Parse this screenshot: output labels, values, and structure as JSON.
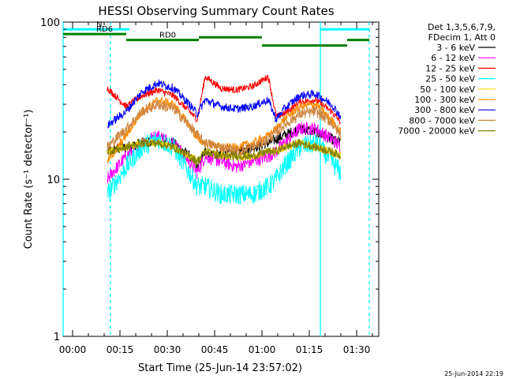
{
  "chart_data": {
    "type": "line",
    "title": "HESSI Observing Summary Count Rates",
    "xlabel": "Start Time (25-Jun-14 23:57:02)",
    "ylabel": "Count Rate (s⁻¹ detector⁻¹)",
    "yscale": "log",
    "ylim": [
      1,
      100
    ],
    "xlim_min": [
      -3,
      97
    ],
    "x_ticks": [
      "00:00",
      "00:15",
      "00:30",
      "00:45",
      "01:00",
      "01:15",
      "01:30"
    ],
    "x_tick_minutes": [
      0,
      15,
      30,
      45,
      60,
      75,
      90
    ],
    "y_tick_labels": [
      "1",
      "10",
      "100"
    ],
    "y_tick_values": [
      1,
      10,
      100
    ],
    "legend_header": [
      "Det 1,3,5,6,7,9,",
      "FDecim 1, Att 0"
    ],
    "legend_placement": "right",
    "footer_timestamp": "25-Jun-2014 22:19",
    "data_range_min": [
      11,
      85
    ],
    "eclipse_gap_min": [
      39.5,
      64.5
    ],
    "series": [
      {
        "name": "3 - 6 keV",
        "color": "#000000",
        "x": [
          11,
          17,
          22,
          27,
          32,
          37,
          39.5,
          42,
          47,
          52,
          57,
          62,
          64.5,
          67,
          72,
          77,
          82,
          85
        ],
        "y": [
          15,
          16,
          17,
          18,
          17,
          14,
          12,
          15,
          14,
          15,
          16,
          17,
          18,
          19,
          21,
          20,
          18,
          17
        ]
      },
      {
        "name": "6 - 12 keV",
        "color": "#ff00ff",
        "x": [
          11,
          17,
          22,
          27,
          32,
          37,
          39.5,
          42,
          47,
          52,
          57,
          62,
          64.5,
          67,
          72,
          77,
          82,
          85
        ],
        "y": [
          10,
          14,
          17,
          19,
          17,
          13,
          11,
          14,
          13,
          12,
          13,
          14,
          15,
          17,
          21,
          21,
          18,
          16
        ]
      },
      {
        "name": "12 - 25 keV",
        "color": "#ff0000",
        "x": [
          11,
          17,
          22,
          27,
          32,
          37,
          39.5,
          42,
          47,
          52,
          57,
          62,
          64.5,
          67,
          72,
          77,
          82,
          85
        ],
        "y": [
          38,
          29,
          34,
          37,
          34,
          27,
          24,
          45,
          38,
          37,
          39,
          45,
          25,
          26,
          31,
          32,
          27,
          23
        ]
      },
      {
        "name": "25 - 50 keV",
        "color": "#00ffff",
        "x": [
          11,
          17,
          22,
          27,
          32,
          37,
          39.5,
          42,
          47,
          52,
          57,
          62,
          64.5,
          67,
          72,
          77,
          82,
          85
        ],
        "y": [
          8,
          12,
          16,
          18,
          16,
          11,
          9,
          9,
          8,
          8,
          8,
          9,
          10,
          12,
          16,
          17,
          13,
          11
        ]
      },
      {
        "name": "50 - 100 keV",
        "color": "#ffd700",
        "x": [
          11,
          17,
          22,
          27,
          32,
          37,
          39.5,
          42,
          47,
          52,
          57,
          62,
          64.5,
          67,
          72,
          77,
          82,
          85
        ],
        "y": [
          15,
          16,
          17,
          17,
          16,
          14,
          13,
          15,
          14,
          14,
          14,
          15,
          15,
          16,
          17,
          16,
          15,
          14
        ]
      },
      {
        "name": "100 - 300 keV",
        "color": "#ff8c00",
        "x": [
          11,
          17,
          22,
          27,
          32,
          37,
          39.5,
          42,
          47,
          52,
          57,
          62,
          64.5,
          67,
          72,
          77,
          82,
          85
        ],
        "y": [
          13,
          19,
          27,
          32,
          30,
          22,
          18,
          17,
          16,
          16,
          17,
          19,
          21,
          24,
          29,
          30,
          24,
          20
        ]
      },
      {
        "name": "300 - 800 keV",
        "color": "#0000ff",
        "x": [
          11,
          17,
          22,
          27,
          32,
          37,
          39.5,
          42,
          47,
          52,
          57,
          62,
          64.5,
          67,
          72,
          77,
          82,
          85
        ],
        "y": [
          22,
          27,
          36,
          41,
          38,
          30,
          26,
          32,
          29,
          28,
          29,
          32,
          24,
          28,
          34,
          35,
          30,
          25
        ]
      },
      {
        "name": "800 - 7000 keV",
        "color": "#cd853f",
        "x": [
          11,
          17,
          22,
          27,
          32,
          37,
          39.5,
          42,
          47,
          52,
          57,
          62,
          64.5,
          67,
          72,
          77,
          82,
          85
        ],
        "y": [
          16,
          21,
          27,
          30,
          28,
          22,
          19,
          17,
          16,
          15,
          16,
          18,
          20,
          22,
          26,
          27,
          23,
          19
        ]
      },
      {
        "name": "7000 - 20000 keV",
        "color": "#808000",
        "x": [
          11,
          17,
          22,
          27,
          32,
          37,
          39.5,
          42,
          47,
          52,
          57,
          62,
          64.5,
          67,
          72,
          77,
          82,
          85
        ],
        "y": [
          15,
          16,
          17,
          17,
          16,
          14,
          13,
          15,
          14,
          14,
          14,
          15,
          15,
          16,
          17,
          16,
          15,
          14
        ]
      }
    ],
    "annotations": [
      {
        "label": "N",
        "color": "#00ffff",
        "x_start": -3,
        "x_end": 18,
        "level_rate": 90
      },
      {
        "label": "",
        "color": "#00ffff",
        "x_start": 78.5,
        "x_end": 94,
        "level_rate": 90
      },
      {
        "label": "RD0",
        "color": "#008000",
        "x_start": 17,
        "x_end": 40,
        "level_rate": 77
      },
      {
        "label": "",
        "color": "#008000",
        "x_start": 40,
        "x_end": 60,
        "level_rate": 80
      },
      {
        "label": "",
        "color": "#008000",
        "x_start": 60,
        "x_end": 87,
        "level_rate": 71
      },
      {
        "label": "",
        "color": "#008000",
        "x_start": 87,
        "x_end": 94,
        "level_rate": 77
      },
      {
        "label": "RD6",
        "color": "#008000",
        "x_start": -3,
        "x_end": 17,
        "level_rate": 84
      }
    ],
    "markers": [
      {
        "type": "solid",
        "color": "#00ffff",
        "x": -3
      },
      {
        "type": "dashed",
        "color": "#00ffff",
        "x": 12
      },
      {
        "type": "solid",
        "color": "#00ffff",
        "x": 78.5
      },
      {
        "type": "dashed",
        "color": "#00ffff",
        "x": 94
      }
    ]
  }
}
